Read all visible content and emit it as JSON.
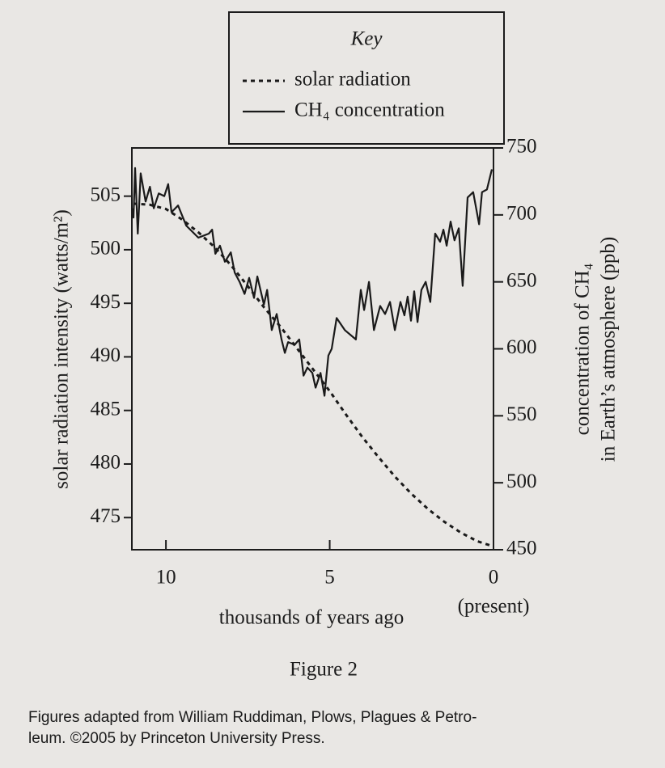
{
  "chart_data": {
    "type": "line",
    "key_title": "Key",
    "xlabel": "thousands of years ago",
    "annotation": "(present)",
    "ylabel": "solar radiation intensity (watts/m²)",
    "y2label": [
      "concentration of CH₄",
      "in Earth’s atmosphere (ppb)"
    ],
    "figure_label": "Figure 2",
    "caption": [
      "Figures adapted from William Ruddiman, Plows, Plagues & Petro-",
      "leum. ©2005 by Princeton University Press."
    ],
    "xlim": [
      11.04,
      0
    ],
    "xticks": [
      10,
      5,
      0
    ],
    "ylim": [
      472,
      509.5
    ],
    "yticks": [
      475,
      480,
      485,
      490,
      495,
      500,
      505
    ],
    "y2lim": [
      450,
      750
    ],
    "y2ticks": [
      450,
      500,
      550,
      600,
      650,
      700,
      750
    ],
    "series": [
      {
        "name": "solar radiation",
        "color": "#1a1a1a",
        "dashed": true,
        "x": [
          11,
          10.5,
          10,
          9.5,
          9,
          8.5,
          8,
          7.5,
          7,
          6.5,
          6,
          5.5,
          5,
          4.5,
          4,
          3.5,
          3,
          2.5,
          2,
          1.5,
          1,
          0.5,
          0
        ],
        "values": [
          504.3,
          504.2,
          503.8,
          502.8,
          501.6,
          500.2,
          498.5,
          496.6,
          494.6,
          492.8,
          490.8,
          488.8,
          486.8,
          484.6,
          482.5,
          480.6,
          478.8,
          477.2,
          475.8,
          474.6,
          473.6,
          472.8,
          472.3
        ]
      },
      {
        "name": "CH₄ concentration",
        "color": "#1a1a1a",
        "dashed": false,
        "axis": "y2",
        "x": [
          11.04,
          10.99,
          10.94,
          10.86,
          10.77,
          10.62,
          10.49,
          10.37,
          10.22,
          10.05,
          9.93,
          9.83,
          9.63,
          9.38,
          9.01,
          8.69,
          8.59,
          8.49,
          8.35,
          8.2,
          8.02,
          7.9,
          7.75,
          7.6,
          7.46,
          7.31,
          7.21,
          7.01,
          6.91,
          6.77,
          6.62,
          6.47,
          6.37,
          6.27,
          6.07,
          5.93,
          5.8,
          5.68,
          5.53,
          5.43,
          5.28,
          5.16,
          5.04,
          4.94,
          4.79,
          4.54,
          4.2,
          4.05,
          3.95,
          3.8,
          3.65,
          3.46,
          3.31,
          3.16,
          3.01,
          2.84,
          2.72,
          2.62,
          2.52,
          2.42,
          2.32,
          2.2,
          2.07,
          1.93,
          1.78,
          1.63,
          1.53,
          1.43,
          1.31,
          1.19,
          1.06,
          0.94,
          0.79,
          0.62,
          0.44,
          0.35,
          0.2,
          0.05
        ],
        "values": [
          705,
          698,
          735,
          686,
          731,
          710,
          721,
          705,
          716,
          714,
          723,
          702,
          707,
          692,
          683,
          686,
          689,
          671,
          677,
          665,
          672,
          657,
          650,
          641,
          653,
          638,
          654,
          633,
          644,
          614,
          626,
          607,
          597,
          605,
          603,
          607,
          580,
          586,
          582,
          571,
          582,
          565,
          595,
          600,
          623,
          614,
          607,
          644,
          629,
          650,
          614,
          632,
          626,
          635,
          614,
          635,
          625,
          639,
          621,
          643,
          620,
          644,
          650,
          635,
          686,
          680,
          689,
          677,
          695,
          681,
          690,
          647,
          713,
          717,
          693,
          717,
          719,
          734
        ]
      }
    ]
  }
}
